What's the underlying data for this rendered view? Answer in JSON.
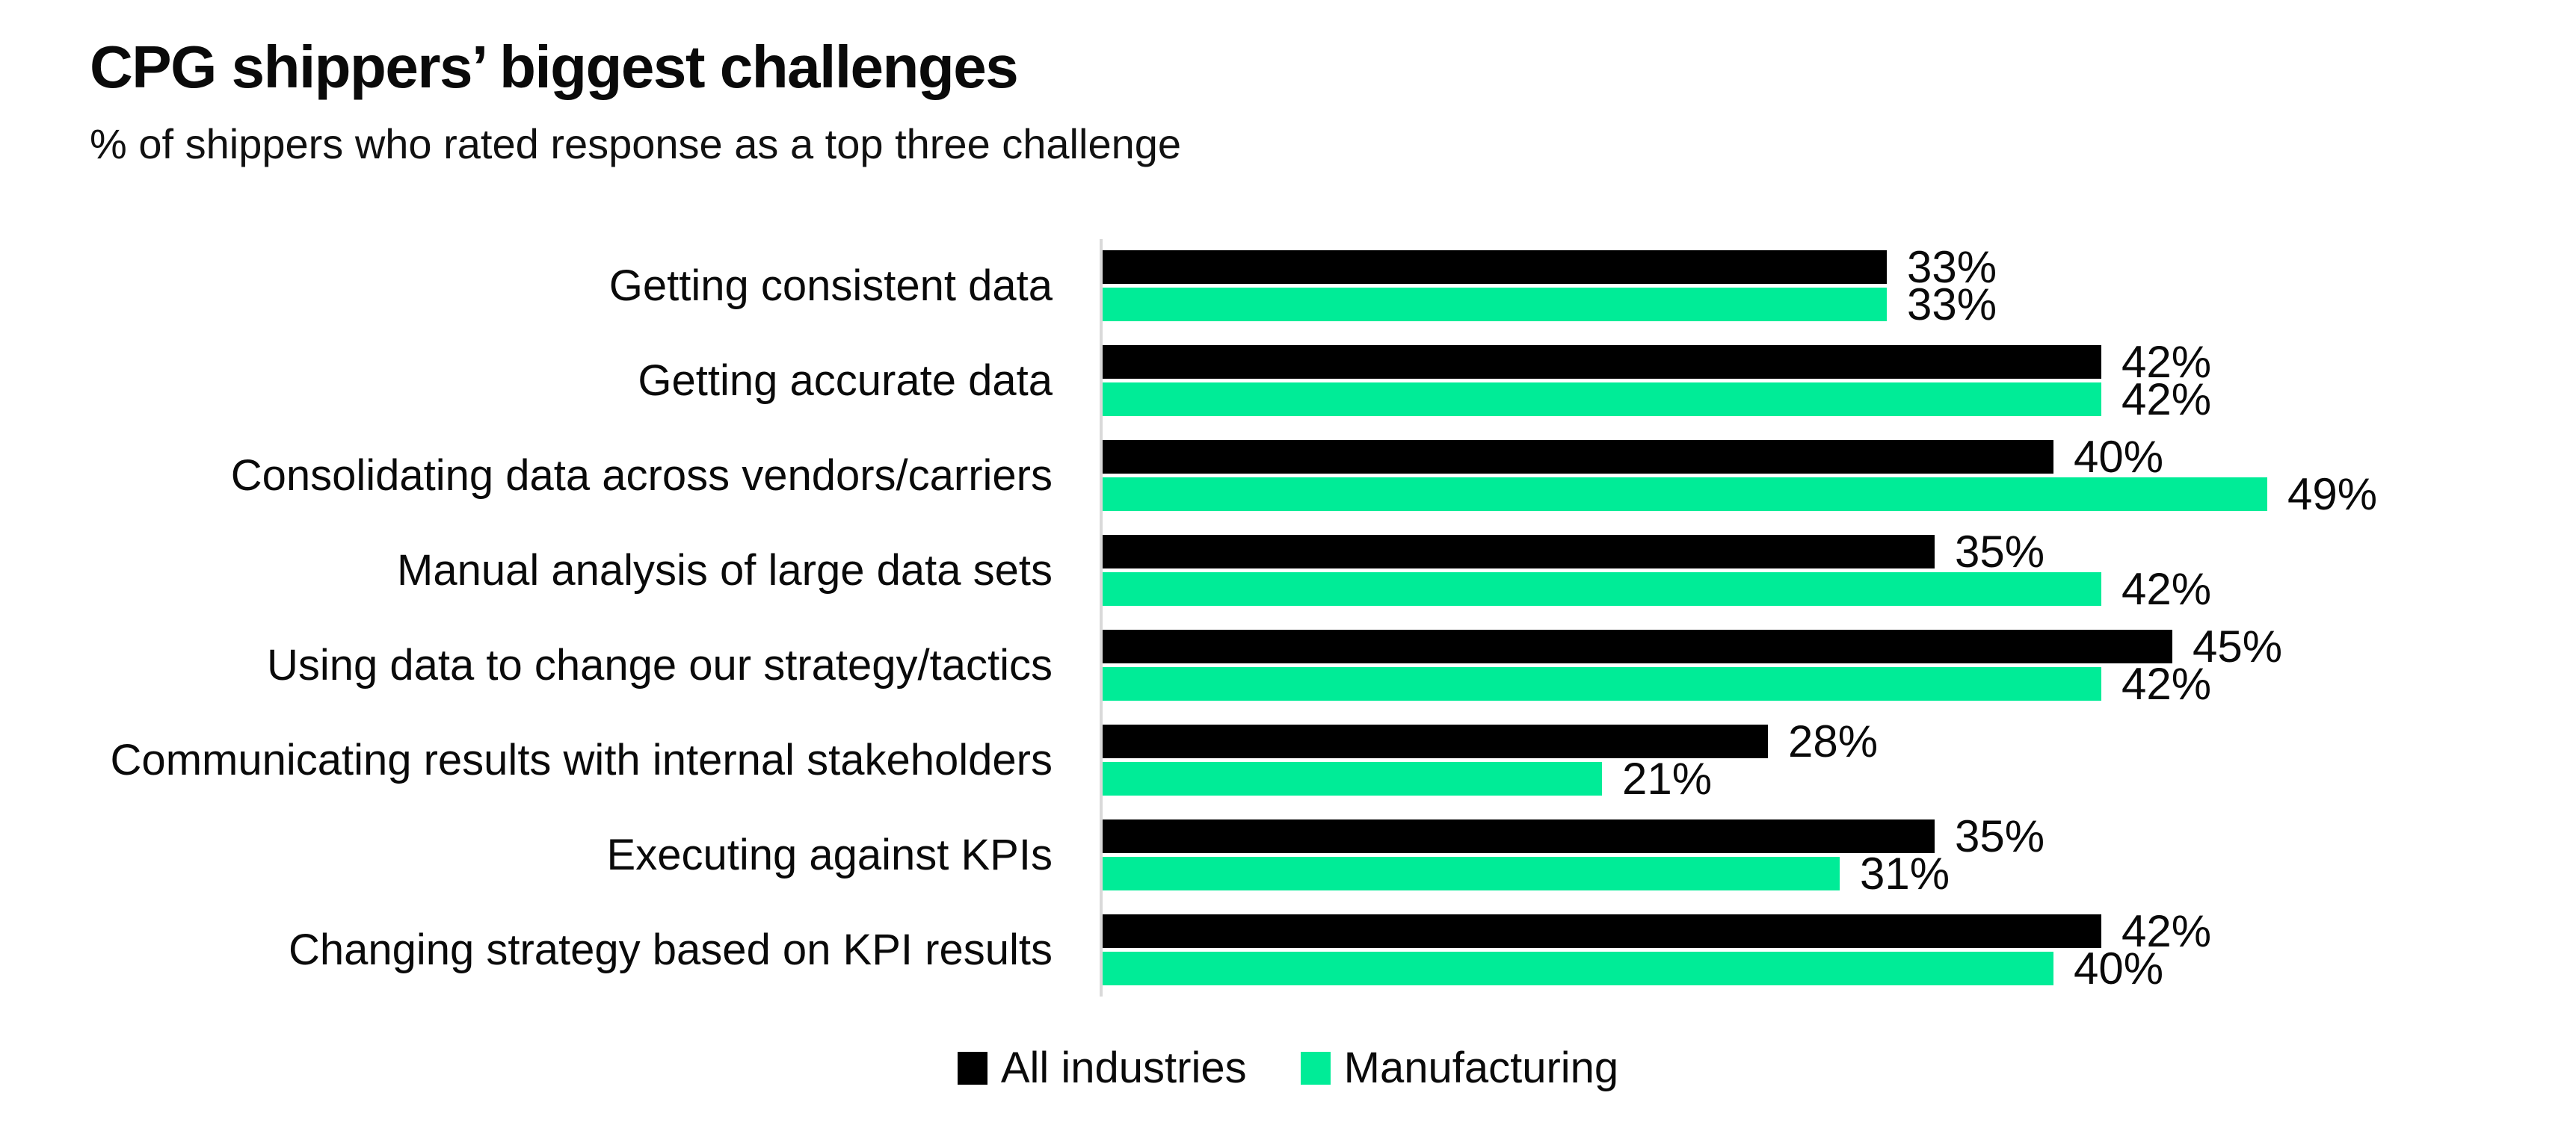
{
  "title": "CPG shippers’ biggest challenges",
  "subtitle": "% of shippers who rated response as a top three challenge",
  "colors": {
    "all_industries": "#000000",
    "manufacturing": "#00EC97",
    "axis": "#D9D9D9",
    "text": "#0A0A0A"
  },
  "legend": {
    "items": [
      {
        "label": "All industries",
        "color": "#000000"
      },
      {
        "label": "Manufacturing",
        "color": "#00EC97"
      }
    ],
    "position": "bottom-center"
  },
  "chart_data": {
    "type": "bar",
    "orientation": "horizontal",
    "grid": false,
    "value_suffix": "%",
    "xlim": [
      0,
      62
    ],
    "categories": [
      "Getting consistent data",
      "Getting accurate data",
      "Consolidating data across vendors/carriers",
      "Manual analysis of large data sets",
      "Using data to change our strategy/tactics",
      "Communicating results with internal stakeholders",
      "Executing against KPIs",
      "Changing strategy based on KPI results"
    ],
    "series": [
      {
        "name": "All industries",
        "color": "#000000",
        "values": [
          33,
          42,
          40,
          35,
          45,
          28,
          35,
          42
        ]
      },
      {
        "name": "Manufacturing",
        "color": "#00EC97",
        "values": [
          33,
          42,
          49,
          42,
          42,
          21,
          31,
          40
        ]
      }
    ],
    "data_labels": [
      [
        "33%",
        "42%",
        "40%",
        "35%",
        "45%",
        "28%",
        "35%",
        "42%"
      ],
      [
        "33%",
        "42%",
        "49%",
        "42%",
        "42%",
        "21%",
        "31%",
        "40%"
      ]
    ]
  }
}
